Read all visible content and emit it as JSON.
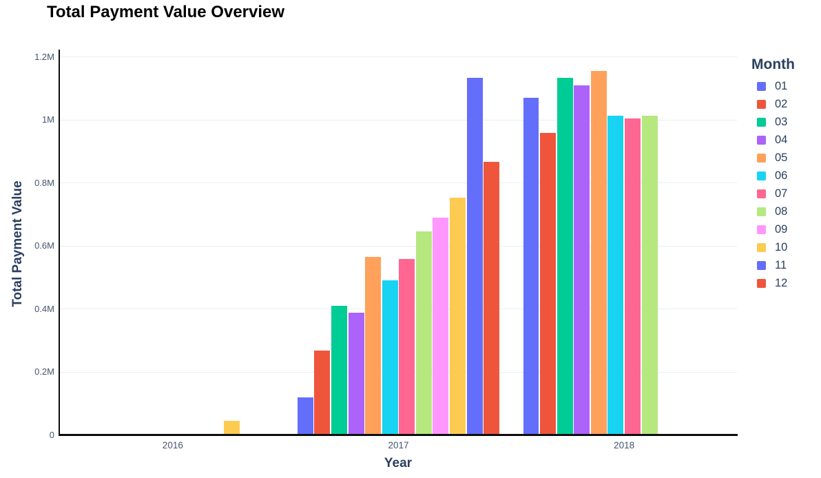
{
  "chart_data": {
    "type": "bar",
    "title": "Total Payment Value Overview",
    "xlabel": "Year",
    "ylabel": "Total Payment Value",
    "legend_title": "Month",
    "legend_position": "right",
    "grid": true,
    "categories": [
      "2016",
      "2017",
      "2018"
    ],
    "ylim": [
      0,
      1224000
    ],
    "ytick_step": 200000,
    "ytick_labels": [
      "0",
      "0.2M",
      "0.4M",
      "0.6M",
      "0.8M",
      "1M",
      "1.2M"
    ],
    "series": [
      {
        "name": "01",
        "color": "#636EFA",
        "values": [
          null,
          120000,
          1070000
        ]
      },
      {
        "name": "02",
        "color": "#EF553B",
        "values": [
          null,
          269000,
          959000
        ]
      },
      {
        "name": "03",
        "color": "#00CC96",
        "values": [
          null,
          410000,
          1134000
        ]
      },
      {
        "name": "04",
        "color": "#AB63FA",
        "values": [
          null,
          388000,
          1111000
        ]
      },
      {
        "name": "05",
        "color": "#FFA15A",
        "values": [
          null,
          567000,
          1156000
        ]
      },
      {
        "name": "06",
        "color": "#19D3F3",
        "values": [
          null,
          492000,
          1015000
        ]
      },
      {
        "name": "07",
        "color": "#FF6692",
        "values": [
          null,
          559000,
          1006000
        ]
      },
      {
        "name": "08",
        "color": "#B6E880",
        "values": [
          null,
          646000,
          1014000
        ]
      },
      {
        "name": "09",
        "color": "#FF97FF",
        "values": [
          null,
          691000,
          null
        ]
      },
      {
        "name": "10",
        "color": "#FECB52",
        "values": [
          45000,
          755000,
          null
        ]
      },
      {
        "name": "11",
        "color": "#636EFA",
        "values": [
          null,
          1134000,
          null
        ]
      },
      {
        "name": "12",
        "color": "#EF553B",
        "values": [
          null,
          868000,
          null
        ]
      }
    ]
  }
}
